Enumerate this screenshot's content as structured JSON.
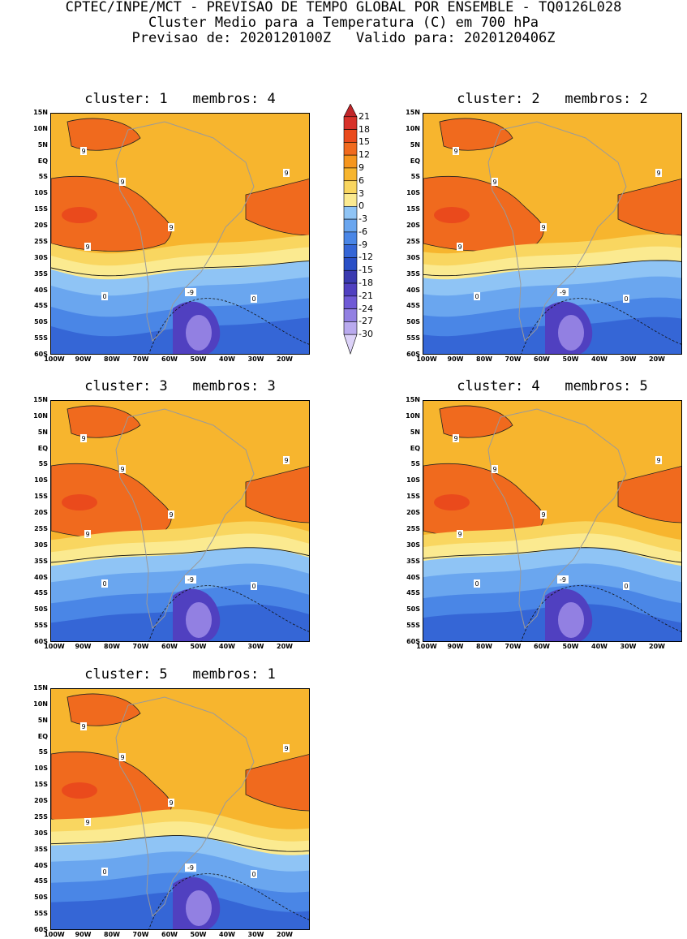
{
  "header": {
    "line1": "CPTEC/INPE/MCT - PREVISAO DE TEMPO GLOBAL POR ENSEMBLE - TQ0126L028",
    "line2": "Cluster Medio para a Temperatura (C) em 700 hPa",
    "line3": "Previsao de: 2020120100Z   Valido para: 2020120406Z"
  },
  "panels": [
    {
      "title": "cluster: 1   membros: 4"
    },
    {
      "title": "cluster: 2   membros: 2"
    },
    {
      "title": "cluster: 3   membros: 3"
    },
    {
      "title": "cluster: 4   membros: 5"
    },
    {
      "title": "cluster: 5   membros: 1"
    }
  ],
  "lat_ticks": [
    "15N",
    "10N",
    "5N",
    "EQ",
    "5S",
    "10S",
    "15S",
    "20S",
    "25S",
    "30S",
    "35S",
    "40S",
    "45S",
    "50S",
    "55S",
    "60S"
  ],
  "lon_ticks": [
    "100W",
    "90W",
    "80W",
    "70W",
    "60W",
    "50W",
    "40W",
    "30W",
    "20W"
  ],
  "colorbar": {
    "labels": [
      "21",
      "18",
      "15",
      "12",
      "9",
      "6",
      "3",
      "0",
      "-3",
      "-6",
      "-9",
      "-12",
      "-15",
      "-18",
      "-21",
      "-24",
      "-27",
      "-30"
    ],
    "colors": [
      "#c0262a",
      "#d8322a",
      "#ea4a1c",
      "#f06a1e",
      "#f6961e",
      "#f7b52e",
      "#f9d660",
      "#fbea90",
      "#8fc4f5",
      "#6aa6ef",
      "#4a86e6",
      "#3566d6",
      "#2a4fc6",
      "#3a3ab0",
      "#5040c0",
      "#6f5ad6",
      "#9280e2",
      "#b9aaee",
      "#dcd2f8"
    ]
  },
  "contour_labels": {
    "nine": "9",
    "zero": "0",
    "neg_nine": "-9"
  }
}
